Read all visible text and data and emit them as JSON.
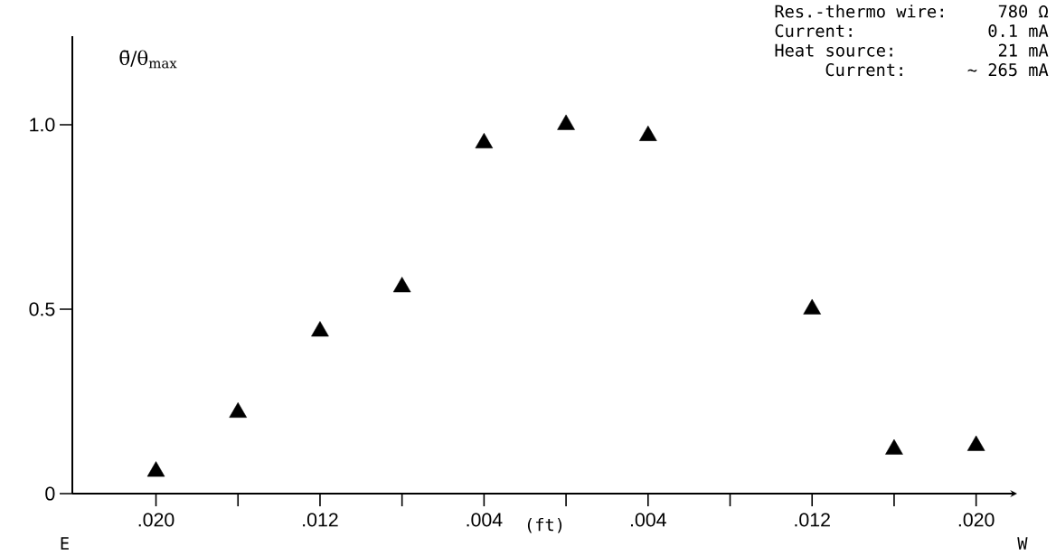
{
  "chart_data": {
    "type": "scatter",
    "xlabel": "(ft)",
    "ylabel": "θ̄/θ$_{max}$",
    "categories": [
      ".020",
      null,
      ".012",
      null,
      ".004",
      null,
      ".004",
      null,
      ".012",
      null,
      ".020"
    ],
    "series": [
      {
        "color": "#000000",
        "values": [
          0.06,
          0.22,
          0.44,
          0.56,
          0.95,
          1.0,
          0.97,
          null,
          0.5,
          0.12,
          0.13
        ]
      }
    ],
    "marker": "triangle",
    "ylim": [
      0,
      1.24
    ],
    "yticks": [
      0,
      0.5,
      {
        "value": 1.0,
        "label": "1.0"
      }
    ],
    "annotations": [
      "Res.-thermo wire:",
      "780 Ω",
      "Current:",
      "0.1 mA",
      "Heat source:",
      "21 mA",
      "Current:",
      "∼ 265 mA",
      "E",
      "W"
    ]
  }
}
